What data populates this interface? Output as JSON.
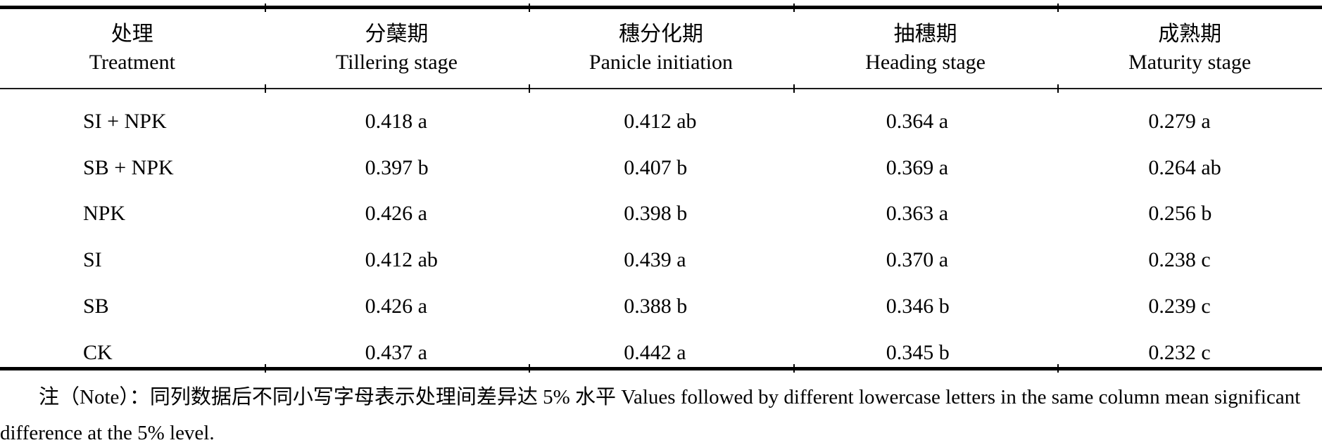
{
  "table": {
    "columns": [
      {
        "zh": "处理",
        "en": "Treatment"
      },
      {
        "zh": "分蘖期",
        "en": "Tillering stage"
      },
      {
        "zh": "穗分化期",
        "en": "Panicle initiation"
      },
      {
        "zh": "抽穗期",
        "en": "Heading stage"
      },
      {
        "zh": "成熟期",
        "en": "Maturity stage"
      }
    ],
    "rows": [
      {
        "cells": [
          "SI + NPK",
          "0.418 a",
          "0.412 ab",
          "0.364 a",
          "0.279 a"
        ]
      },
      {
        "cells": [
          "SB + NPK",
          "0.397 b",
          "0.407 b",
          "0.369 a",
          "0.264 ab"
        ]
      },
      {
        "cells": [
          "NPK",
          "0.426 a",
          "0.398 b",
          "0.363 a",
          "0.256 b"
        ]
      },
      {
        "cells": [
          "SI",
          "0.412 ab",
          "0.439 a",
          "0.370 a",
          "0.238 c"
        ]
      },
      {
        "cells": [
          "SB",
          "0.426 a",
          "0.388 b",
          "0.346 b",
          "0.239 c"
        ]
      },
      {
        "cells": [
          "CK",
          "0.437 a",
          "0.442 a",
          "0.345 b",
          "0.232 c"
        ]
      }
    ]
  },
  "note": {
    "text": "注（Note）：同列数据后不同小写字母表示处理间差异达 5% 水平 Values followed by different lowercase letters in the same column mean significant difference at the 5% level."
  },
  "colors": {
    "background": "#ffffff",
    "text": "#000000",
    "rule": "#000000"
  }
}
